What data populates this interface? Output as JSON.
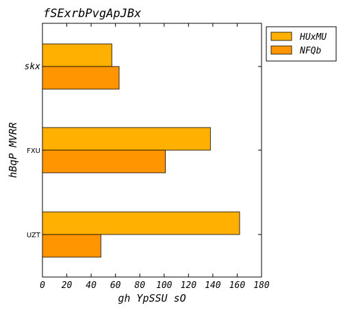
{
  "chart_data": {
    "type": "bar",
    "orientation": "horizontal",
    "title": "fSExrbPvgApJBx",
    "xlabel": "gh YpSSU sO",
    "ylabel": "hBqP MVRR",
    "categories": [
      "skx",
      "FXU",
      "UZT"
    ],
    "series": [
      {
        "name": "HUxMU",
        "values": [
          57,
          138,
          162
        ],
        "color": "#ffb000"
      },
      {
        "name": "NFQb",
        "values": [
          63,
          101,
          48
        ],
        "color": "#ff9500"
      }
    ],
    "xlim": [
      0,
      180
    ],
    "xticks": [
      "0",
      "20",
      "40",
      "60",
      "80",
      "100",
      "120",
      "140",
      "160",
      "180"
    ],
    "grid": false,
    "legend_position": "outside-top-right"
  }
}
